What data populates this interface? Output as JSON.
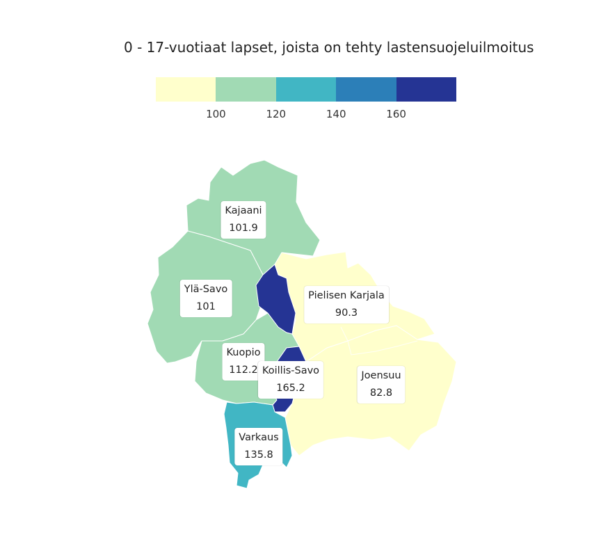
{
  "title": "0 - 17-vuotiaat lapset, joista on tehty lastensuojeluilmoitus",
  "legend": {
    "colors": [
      "#ffffcc",
      "#a1dab4",
      "#41b6c4",
      "#2c7fb8",
      "#253494"
    ],
    "ticks": [
      "100",
      "120",
      "140",
      "160"
    ]
  },
  "regions": [
    {
      "name": "Kajaani",
      "value": "101.9",
      "color": "#a1dab4"
    },
    {
      "name": "Ylä-Savo",
      "value": "101",
      "color": "#a1dab4"
    },
    {
      "name": "Pielisen Karjala",
      "value": "90.3",
      "color": "#ffffcc"
    },
    {
      "name": "Kuopio",
      "value": "112.2",
      "color": "#a1dab4"
    },
    {
      "name": "Koillis-Savo",
      "value": "165.2",
      "color": "#253494"
    },
    {
      "name": "Joensuu",
      "value": "82.8",
      "color": "#ffffcc"
    },
    {
      "name": "Varkaus",
      "value": "135.8",
      "color": "#41b6c4"
    }
  ]
}
